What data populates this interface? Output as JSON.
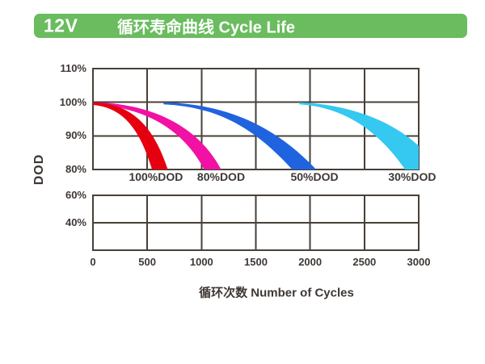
{
  "header": {
    "voltage": "12V",
    "title": "循环寿命曲线 Cycle Life",
    "bg_color": "#6abc5f",
    "text_color": "#ffffff"
  },
  "chart_data": {
    "type": "area",
    "title": "循环寿命曲线 Cycle Life",
    "xlabel": "循环次数 Number of Cycles",
    "ylabel": "DOD",
    "grid": "on",
    "grid_color": "#474039",
    "text_color": "#3e3835",
    "xlim": [
      0,
      3000
    ],
    "x_ticks": [
      {
        "value": 0,
        "label": "0"
      },
      {
        "value": 500,
        "label": "500"
      },
      {
        "value": 1000,
        "label": "1000"
      },
      {
        "value": 1500,
        "label": "1500"
      },
      {
        "value": 2000,
        "label": "2000"
      },
      {
        "value": 2500,
        "label": "2500"
      },
      {
        "value": 3000,
        "label": "3000"
      }
    ],
    "panels": [
      {
        "id": "top",
        "ylim": [
          80,
          110
        ],
        "y_ticks": [
          {
            "value": 110,
            "label": "110%"
          },
          {
            "value": 100,
            "label": "100%"
          },
          {
            "value": 90,
            "label": "90%"
          },
          {
            "value": 80,
            "label": "80%"
          }
        ]
      },
      {
        "id": "bottom",
        "ylim": [
          20,
          60
        ],
        "y_ticks": [
          {
            "value": 60,
            "label": "60%"
          },
          {
            "value": 40,
            "label": "40%"
          }
        ]
      }
    ],
    "series": [
      {
        "name": "100pct-dod",
        "label": "100%DOD",
        "color": "#e6000f",
        "label_x": 580,
        "cycles_to_80pct_capacity": 600,
        "band": {
          "upper": [
            [
              0,
              100
            ],
            [
              350,
              99.6
            ],
            [
              550,
              93.5
            ],
            [
              690,
              80
            ]
          ],
          "lower": [
            [
              0,
              99.2
            ],
            [
              280,
              98.4
            ],
            [
              430,
              92
            ],
            [
              545,
              80
            ]
          ]
        }
      },
      {
        "name": "80pct-dod",
        "label": "80%DOD",
        "color": "#f211a5",
        "label_x": 1180,
        "cycles_to_80pct_capacity": 1100,
        "band": {
          "upper": [
            [
              20,
              100
            ],
            [
              520,
              99.5
            ],
            [
              960,
              93.5
            ],
            [
              1180,
              80
            ]
          ],
          "lower": [
            [
              20,
              99.3
            ],
            [
              460,
              98.4
            ],
            [
              820,
              92.5
            ],
            [
              1025,
              80
            ]
          ]
        }
      },
      {
        "name": "50pct-dod",
        "label": "50%DOD",
        "color": "#2063de",
        "label_x": 2040,
        "cycles_to_80pct_capacity": 1950,
        "band": {
          "upper": [
            [
              650,
              100
            ],
            [
              1220,
              99.4
            ],
            [
              1660,
              93.5
            ],
            [
              2055,
              80
            ]
          ],
          "lower": [
            [
              650,
              99.4
            ],
            [
              1150,
              98.6
            ],
            [
              1480,
              92.5
            ],
            [
              1835,
              80
            ]
          ]
        }
      },
      {
        "name": "30pct-dod",
        "label": "30%DOD",
        "color": "#35c8f0",
        "label_x": 2940,
        "cycles_to_80pct_capacity": 2950,
        "band": {
          "upper": [
            [
              1900,
              100
            ],
            [
              2390,
              99.3
            ],
            [
              2770,
              94
            ],
            [
              3000,
              87
            ]
          ],
          "extra": [
            [
              3000,
              80
            ]
          ],
          "lower": [
            [
              1900,
              99.4
            ],
            [
              2330,
              98.5
            ],
            [
              2640,
              91
            ],
            [
              2875,
              80
            ]
          ]
        }
      }
    ]
  }
}
